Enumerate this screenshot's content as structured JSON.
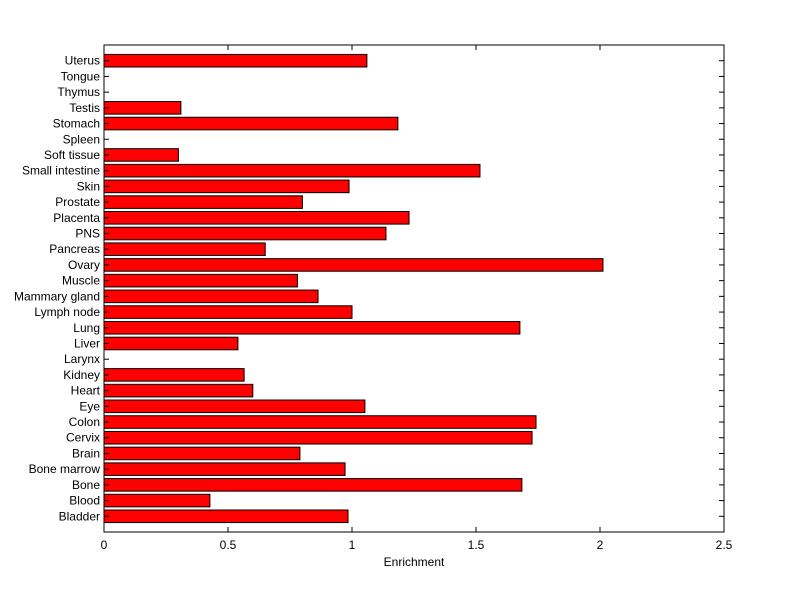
{
  "chart_data": {
    "type": "bar",
    "orientation": "horizontal",
    "title": "",
    "xlabel": "Enrichment",
    "ylabel": "",
    "xlim": [
      0,
      2.5
    ],
    "xticks": [
      "0",
      "0.5",
      "1",
      "1.5",
      "2",
      "2.5"
    ],
    "grid": false,
    "bar_color": "#ff0000",
    "edge_color": "#000000",
    "categories": [
      "Bladder",
      "Blood",
      "Bone",
      "Bone marrow",
      "Brain",
      "Cervix",
      "Colon",
      "Eye",
      "Heart",
      "Kidney",
      "Larynx",
      "Liver",
      "Lung",
      "Lymph node",
      "Mammary gland",
      "Muscle",
      "Ovary",
      "Pancreas",
      "PNS",
      "Placenta",
      "Prostate",
      "Skin",
      "Small intestine",
      "Soft tissue",
      "Spleen",
      "Stomach",
      "Testis",
      "Thymus",
      "Tongue",
      "Uterus"
    ],
    "values": [
      0.984,
      0.427,
      1.685,
      0.972,
      0.79,
      1.726,
      1.742,
      1.052,
      0.6,
      0.565,
      0,
      0.54,
      1.677,
      1.0,
      0.863,
      0.78,
      2.012,
      0.65,
      1.137,
      1.23,
      0.8,
      0.988,
      1.516,
      0.3,
      0,
      1.185,
      0.31,
      0,
      0,
      1.06
    ]
  }
}
